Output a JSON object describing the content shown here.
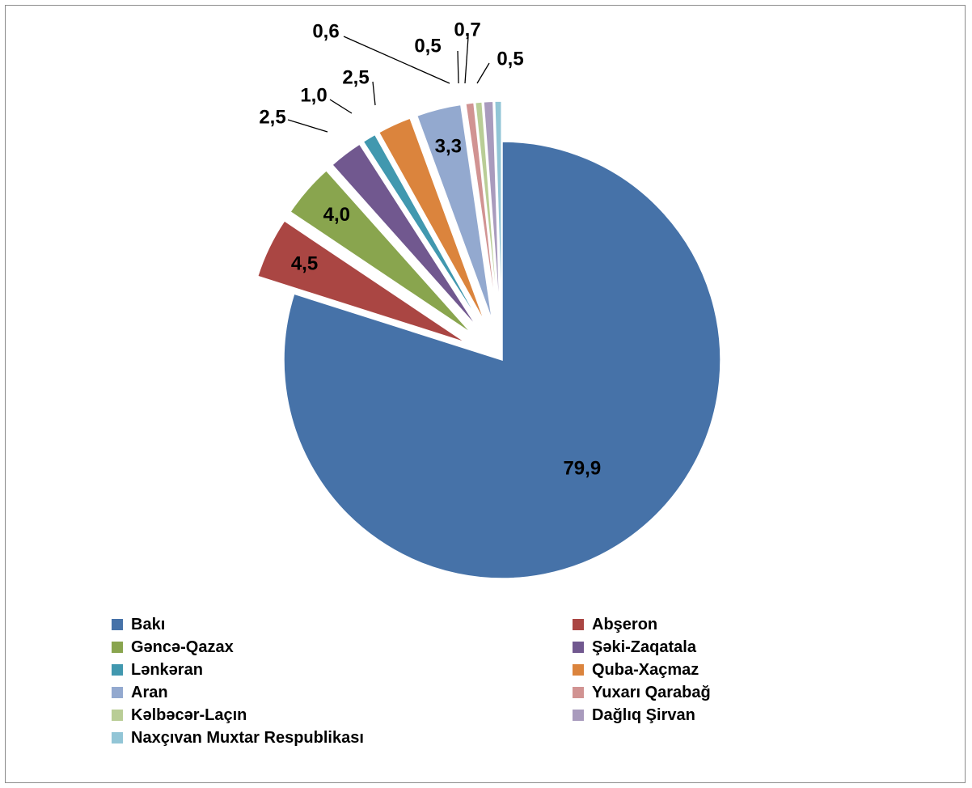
{
  "chart_data": {
    "type": "pie",
    "title": "",
    "exploded": true,
    "legend_position": "bottom",
    "series": [
      {
        "name": "Bakı",
        "value": 79.9,
        "label": "79,9",
        "color": "#4672a8"
      },
      {
        "name": "Abşeron",
        "value": 4.5,
        "label": "4,5",
        "color": "#aa4643"
      },
      {
        "name": "Gəncə-Qazax",
        "value": 4.0,
        "label": "4,0",
        "color": "#89a54e"
      },
      {
        "name": "Şəki-Zaqatala",
        "value": 2.5,
        "label": "2,5",
        "color": "#71588f"
      },
      {
        "name": "Lənkəran",
        "value": 1.0,
        "label": "1,0",
        "color": "#4198af"
      },
      {
        "name": "Quba-Xaçmaz",
        "value": 2.5,
        "label": "2,5",
        "color": "#db843d"
      },
      {
        "name": "Aran",
        "value": 3.3,
        "label": "3,3",
        "color": "#93a9cf"
      },
      {
        "name": "Yuxarı Qarabağ",
        "value": 0.6,
        "label": "0,6",
        "color": "#d19392"
      },
      {
        "name": "Kəlbəcər-Laçın",
        "value": 0.5,
        "label": "0,5",
        "color": "#b9cd96"
      },
      {
        "name": "Dağlıq Şirvan",
        "value": 0.7,
        "label": "0,7",
        "color": "#a99bbd"
      },
      {
        "name": "Naxçıvan Muxtar Respublikası",
        "value": 0.5,
        "label": "0,5",
        "color": "#92c5d6"
      }
    ]
  }
}
